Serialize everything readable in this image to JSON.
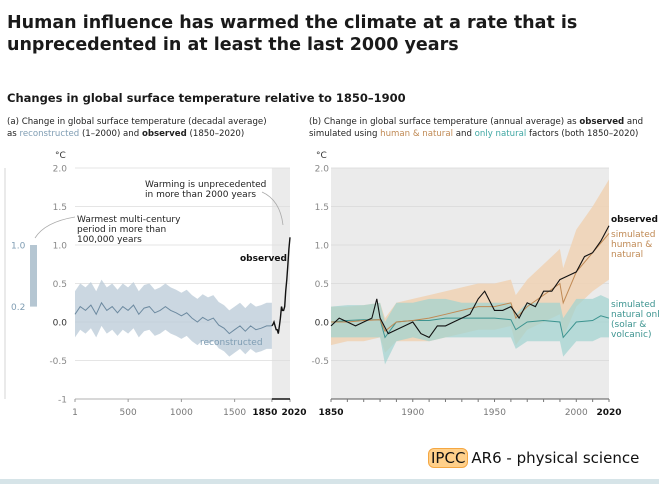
{
  "title": "Human influence has warmed the climate at a rate that is unprecedented in at least the last 2000 years",
  "subtitle": "Changes in global surface temperature relative to 1850–1900",
  "panel_a": {
    "caption_1": "(a) Change in global surface temperature (decadal average)",
    "caption_2a": "as ",
    "caption_reconstructed": "reconstructed",
    "caption_2b": " (1–2000) and ",
    "caption_observed": "observed",
    "caption_2c": " (1850–2020)"
  },
  "panel_b": {
    "caption_1a": "(b) Change in global surface temperature (annual average) as ",
    "caption_observed": "observed",
    "caption_1b": " and",
    "caption_2a": "simulated using ",
    "caption_human": "human & natural",
    "caption_2b": " and ",
    "caption_natural": "only natural",
    "caption_2c": " factors (both 1850–2020)"
  },
  "logo": {
    "ipcc": "IPCC",
    "text": "AR6 - physical science"
  },
  "colors": {
    "reconstructed": "#7f9db3",
    "observed": "#111111",
    "human": "#c08a55",
    "human_band": "#f0d2b4",
    "natural": "#3d9490",
    "natural_band": "#9fd3d0",
    "shade": "#ebebeb"
  },
  "chart_data": [
    {
      "type": "line",
      "unit": "°C",
      "ylim": [
        -1,
        2
      ],
      "yticks": [
        "2.0",
        "1.5",
        "1.0",
        "0.5",
        "0.0",
        "-0.5",
        "-1"
      ],
      "ytick_values": [
        2,
        1.5,
        1,
        0.5,
        0,
        -0.5,
        -1
      ],
      "xlim": [
        1,
        2020
      ],
      "xticks": [
        "1",
        "500",
        "1000",
        "1500",
        "1850",
        "2020"
      ],
      "xtick_values": [
        1,
        500,
        1000,
        1500,
        1850,
        2020
      ],
      "grid": true,
      "shaded_period": [
        1850,
        2020
      ],
      "side_bar": {
        "label_top": "1.0",
        "label_bottom": "0.2",
        "range": [
          0.2,
          1.0
        ],
        "annotation": [
          "Warmest multi-century",
          "period in more than",
          "100,000 years"
        ]
      },
      "annotation": [
        "Warming is unprecedented",
        "in more than 2000 years"
      ],
      "series": [
        {
          "name": "reconstructed",
          "x": [
            1,
            50,
            100,
            150,
            200,
            250,
            300,
            350,
            400,
            450,
            500,
            550,
            600,
            650,
            700,
            750,
            800,
            850,
            900,
            950,
            1000,
            1050,
            1100,
            1150,
            1200,
            1250,
            1300,
            1350,
            1400,
            1450,
            1500,
            1550,
            1600,
            1650,
            1700,
            1750,
            1800,
            1850
          ],
          "y": [
            0.1,
            0.2,
            0.15,
            0.22,
            0.1,
            0.25,
            0.15,
            0.2,
            0.12,
            0.2,
            0.15,
            0.22,
            0.1,
            0.18,
            0.2,
            0.12,
            0.15,
            0.2,
            0.15,
            0.12,
            0.08,
            0.12,
            0.05,
            0.0,
            0.06,
            0.02,
            0.05,
            -0.04,
            -0.08,
            -0.15,
            -0.1,
            -0.05,
            -0.12,
            -0.05,
            -0.1,
            -0.08,
            -0.05,
            -0.05
          ],
          "band": 0.3
        },
        {
          "name": "observed",
          "x": [
            1850,
            1860,
            1870,
            1880,
            1890,
            1900,
            1910,
            1920,
            1930,
            1940,
            1950,
            1960,
            1970,
            1980,
            1990,
            2000,
            2010,
            2020
          ],
          "y": [
            -0.05,
            -0.03,
            0.0,
            -0.05,
            -0.1,
            -0.1,
            -0.15,
            -0.05,
            0.05,
            0.2,
            0.15,
            0.15,
            0.2,
            0.4,
            0.55,
            0.75,
            0.95,
            1.1
          ]
        }
      ]
    },
    {
      "type": "line",
      "unit": "°C",
      "ylim": [
        -1,
        2
      ],
      "yticks": [
        "2.0",
        "1.5",
        "1.0",
        "0.5",
        "0.0",
        "-0.5"
      ],
      "ytick_values": [
        2,
        1.5,
        1,
        0.5,
        0,
        -0.5
      ],
      "xlim": [
        1850,
        2020
      ],
      "xticks": [
        "1850",
        "1900",
        "1950",
        "2000",
        "2020"
      ],
      "xtick_values": [
        1850,
        1900,
        1950,
        2000,
        2020
      ],
      "grid": true,
      "series": [
        {
          "name": "observed",
          "x": [
            1850,
            1855,
            1860,
            1865,
            1870,
            1875,
            1878,
            1880,
            1885,
            1890,
            1895,
            1900,
            1905,
            1910,
            1915,
            1920,
            1925,
            1930,
            1935,
            1940,
            1944,
            1950,
            1955,
            1960,
            1965,
            1970,
            1975,
            1980,
            1985,
            1990,
            1995,
            2000,
            2005,
            2010,
            2015,
            2020
          ],
          "y": [
            -0.05,
            0.05,
            0.0,
            -0.05,
            0.0,
            0.05,
            0.3,
            0.05,
            -0.15,
            -0.1,
            -0.05,
            0.0,
            -0.15,
            -0.2,
            -0.05,
            -0.05,
            0.0,
            0.05,
            0.1,
            0.3,
            0.4,
            0.15,
            0.15,
            0.2,
            0.05,
            0.25,
            0.2,
            0.4,
            0.4,
            0.55,
            0.6,
            0.65,
            0.85,
            0.9,
            1.05,
            1.25
          ]
        },
        {
          "name": "simulated human & natural",
          "x": [
            1850,
            1860,
            1870,
            1880,
            1883,
            1890,
            1900,
            1910,
            1920,
            1930,
            1940,
            1950,
            1960,
            1963,
            1970,
            1980,
            1990,
            1992,
            2000,
            2010,
            2020
          ],
          "y": [
            0.0,
            0.0,
            0.02,
            0.03,
            -0.12,
            0.0,
            0.02,
            0.05,
            0.1,
            0.15,
            0.2,
            0.2,
            0.25,
            0.05,
            0.2,
            0.35,
            0.5,
            0.25,
            0.65,
            0.9,
            1.15
          ],
          "upper": [
            0.2,
            0.2,
            0.22,
            0.25,
            0.05,
            0.25,
            0.3,
            0.35,
            0.4,
            0.45,
            0.5,
            0.5,
            0.55,
            0.35,
            0.55,
            0.75,
            0.95,
            0.7,
            1.2,
            1.5,
            1.85
          ],
          "lower": [
            -0.3,
            -0.25,
            -0.25,
            -0.2,
            -0.4,
            -0.25,
            -0.25,
            -0.25,
            -0.2,
            -0.15,
            -0.1,
            -0.1,
            -0.05,
            -0.3,
            -0.1,
            0.0,
            0.1,
            -0.2,
            0.2,
            0.4,
            0.55
          ]
        },
        {
          "name": "simulated natural only (solar & volcanic)",
          "x": [
            1850,
            1860,
            1870,
            1880,
            1883,
            1890,
            1900,
            1910,
            1920,
            1930,
            1940,
            1950,
            1960,
            1963,
            1970,
            1980,
            1990,
            1992,
            2000,
            2010,
            2015,
            2020
          ],
          "y": [
            0.0,
            0.02,
            0.03,
            0.03,
            -0.2,
            0.0,
            0.02,
            0.02,
            0.05,
            0.05,
            0.05,
            0.05,
            0.03,
            -0.1,
            0.0,
            0.02,
            0.0,
            -0.2,
            0.0,
            0.02,
            0.08,
            0.05
          ],
          "upper": [
            0.2,
            0.22,
            0.22,
            0.25,
            0.0,
            0.25,
            0.25,
            0.3,
            0.3,
            0.25,
            0.25,
            0.25,
            0.25,
            0.1,
            0.25,
            0.25,
            0.25,
            0.05,
            0.3,
            0.3,
            0.35,
            0.3
          ],
          "lower": [
            -0.2,
            -0.2,
            -0.2,
            -0.2,
            -0.55,
            -0.25,
            -0.2,
            -0.25,
            -0.2,
            -0.2,
            -0.2,
            -0.2,
            -0.2,
            -0.35,
            -0.25,
            -0.25,
            -0.25,
            -0.45,
            -0.25,
            -0.25,
            -0.2,
            -0.2
          ]
        }
      ]
    }
  ]
}
